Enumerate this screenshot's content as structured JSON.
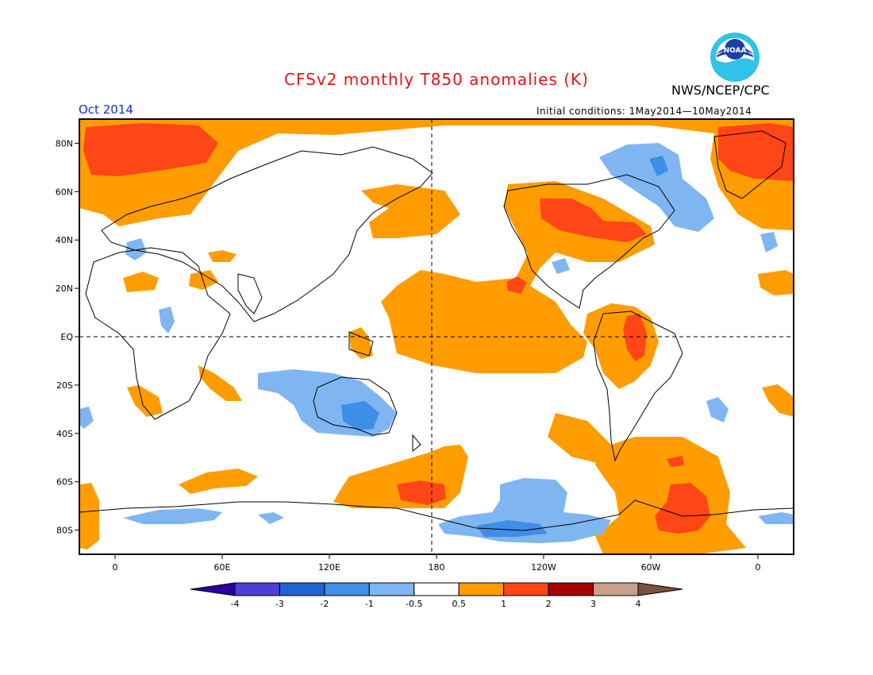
{
  "header": {
    "title": "CFSv2 monthly T850 anomalies (K)",
    "organization": "NWS/NCEP/CPC",
    "month": "Oct 2014",
    "initial_conditions": "Initial conditions:  1May2014—10May2014",
    "logo_text": "NOAA"
  },
  "map": {
    "projection": "equirectangular",
    "lon_range": [
      -20,
      380
    ],
    "lat_range": [
      -90,
      90
    ],
    "lat_ticks": [
      "80N",
      "60N",
      "40N",
      "20N",
      "EQ",
      "20S",
      "40S",
      "60S",
      "80S"
    ],
    "lon_ticks": [
      "0",
      "60E",
      "120E",
      "180",
      "120W",
      "60W",
      "0"
    ],
    "reference_lines": [
      "equator",
      "dateline"
    ]
  },
  "colorbar": {
    "levels": [
      "-4",
      "-3",
      "-2",
      "-1",
      "-0.5",
      "0.5",
      "1",
      "2",
      "3",
      "4"
    ],
    "colors": [
      "#2a00a0",
      "#4c3fd8",
      "#1f63d6",
      "#3f8ee8",
      "#7fb6f2",
      "#ffffff",
      "#ff9d00",
      "#ff4616",
      "#a60000",
      "#c8a08c",
      "#7a5040"
    ]
  }
}
